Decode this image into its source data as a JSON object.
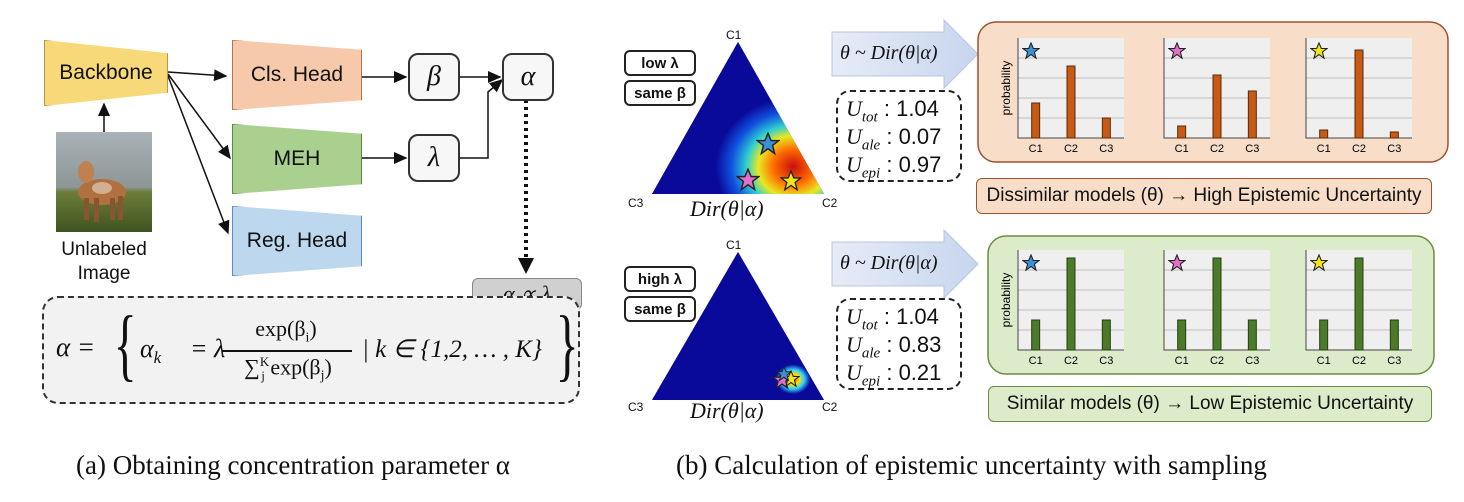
{
  "part_a": {
    "backbone": "Backbone",
    "cls_head": "Cls. Head",
    "meh": "MEH",
    "reg_head": "Reg. Head",
    "beta": "β",
    "lambda": "λ",
    "alpha": "α",
    "image_label_line1": "Unlabeled",
    "image_label_line2": "Image",
    "alpha_prop": "α ∝ λ",
    "formula": {
      "lhs": "α =",
      "open_brace": "{",
      "alpha_k": "α",
      "k_sub": "k",
      "eq_lambda": "= λ",
      "numerator": "exp(β",
      "num_sub": "i",
      "num_close": ")",
      "denominator_sum": "∑",
      "den_sub": "j",
      "den_sup": "K",
      "den_exp": "exp(β",
      "den_exp_sub": "j",
      "den_close": ")",
      "cond": "| k ∈ {1,2, … , K}",
      "close_brace": "}"
    },
    "caption": "(a) Obtaining concentration parameter α"
  },
  "part_b": {
    "top": {
      "tag1": "low λ",
      "tag2": "same β",
      "sampling": "θ ~ Dir(θ|α)",
      "vertex_top": "C1",
      "vertex_left": "C3",
      "vertex_right": "C2",
      "dir_label": "Dir(θ|α)",
      "u_tot": "1.04",
      "u_ale": "0.07",
      "u_epi": "0.97",
      "ylabel": "probability",
      "categories": [
        "C1",
        "C2",
        "C3"
      ],
      "conclusion": "Dissimilar models (θ)  → High Epistemic Uncertainty"
    },
    "bottom": {
      "tag1": "high λ",
      "tag2": "same β",
      "sampling": "θ ~ Dir(θ|α)",
      "vertex_top": "C1",
      "vertex_left": "C3",
      "vertex_right": "C2",
      "dir_label": "Dir(θ|α)",
      "u_tot": "1.04",
      "u_ale": "0.83",
      "u_epi": "0.21",
      "ylabel": "probability",
      "categories": [
        "C1",
        "C2",
        "C3"
      ],
      "conclusion": "Similar models (θ)  → Low Epistemic Uncertainty"
    },
    "u_labels": {
      "tot": "U",
      "tot_sub": "tot",
      "ale": "U",
      "ale_sub": "ale",
      "epi": "U",
      "epi_sub": "epi"
    },
    "caption": "(b) Calculation of epistemic uncertainty with sampling"
  },
  "chart_data": [
    {
      "type": "bar",
      "panel": "top-blue-star",
      "categories": [
        "C1",
        "C2",
        "C3"
      ],
      "values": [
        0.35,
        0.72,
        0.2
      ],
      "ylabel": "probability"
    },
    {
      "type": "bar",
      "panel": "top-pink-star",
      "categories": [
        "C1",
        "C2",
        "C3"
      ],
      "values": [
        0.12,
        0.63,
        0.47
      ],
      "ylabel": ""
    },
    {
      "type": "bar",
      "panel": "top-yellow-star",
      "categories": [
        "C1",
        "C2",
        "C3"
      ],
      "values": [
        0.08,
        0.88,
        0.06
      ],
      "ylabel": ""
    },
    {
      "type": "bar",
      "panel": "bottom-blue-star",
      "categories": [
        "C1",
        "C2",
        "C3"
      ],
      "values": [
        0.3,
        0.92,
        0.3
      ],
      "ylabel": "probability"
    },
    {
      "type": "bar",
      "panel": "bottom-pink-star",
      "categories": [
        "C1",
        "C2",
        "C3"
      ],
      "values": [
        0.3,
        0.92,
        0.3
      ],
      "ylabel": ""
    },
    {
      "type": "bar",
      "panel": "bottom-yellow-star",
      "categories": [
        "C1",
        "C2",
        "C3"
      ],
      "values": [
        0.3,
        0.92,
        0.3
      ],
      "ylabel": ""
    }
  ],
  "colors": {
    "backbone": "#f8d97a",
    "cls_head": "#f6c9ab",
    "meh": "#a9d08e",
    "reg_head": "#bdd7ee",
    "top_panel": "#f8ddc9",
    "top_panel_border": "#a0522d",
    "bottom_panel": "#dcebc9",
    "bottom_panel_border": "#6b8e3d",
    "star_blue": "#3a8fd8",
    "star_pink": "#e070c8",
    "star_yellow": "#f2e51a"
  }
}
